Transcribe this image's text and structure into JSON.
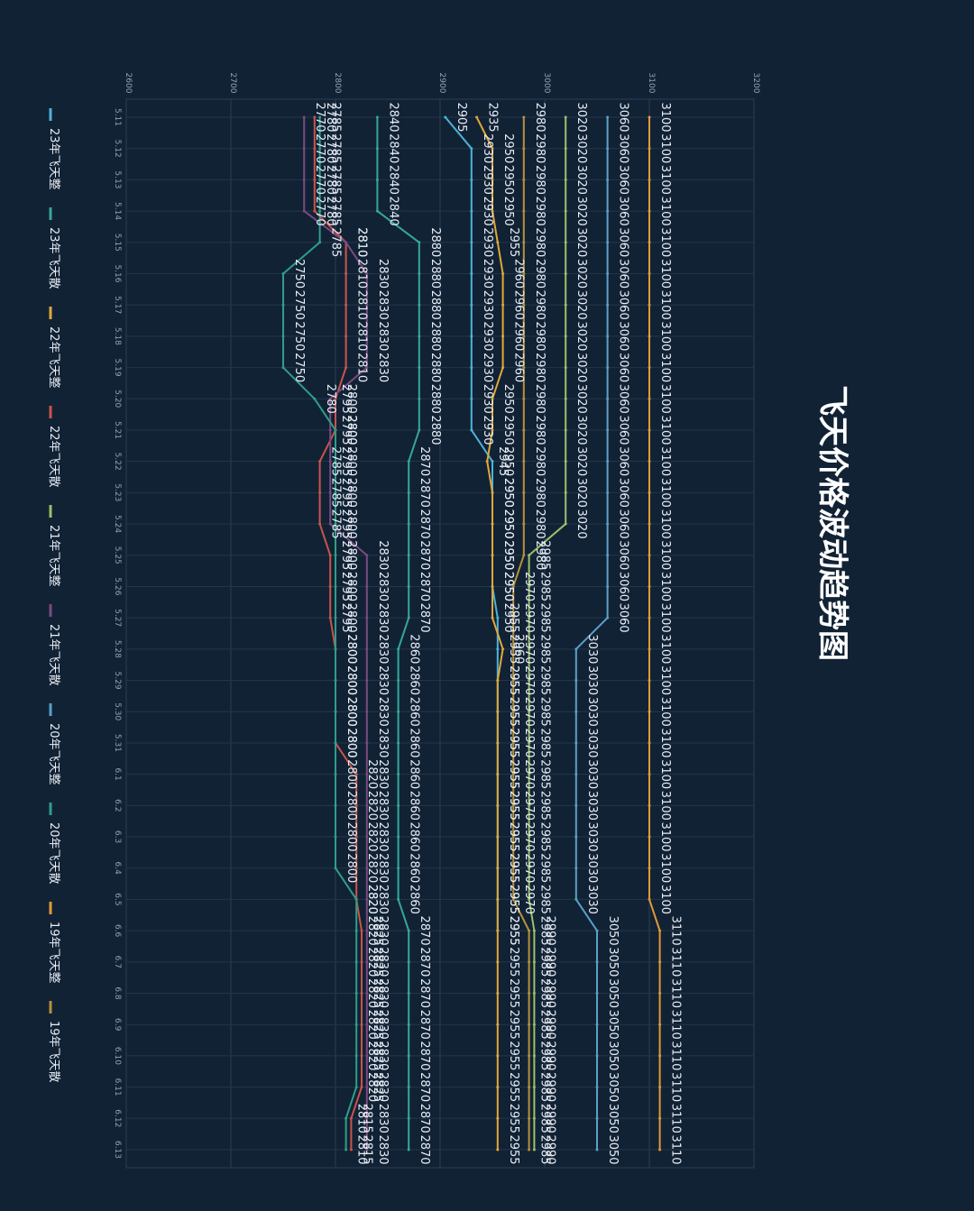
{
  "chart_data": {
    "type": "line",
    "title": "飞天价格波动趋势图",
    "xlabel": "",
    "ylabel": "",
    "ylim": [
      2600,
      3200
    ],
    "y_ticks": [
      "2600",
      "2700",
      "2800",
      "2900",
      "3000",
      "3100",
      "3200"
    ],
    "x": [
      "5.11",
      "5.12",
      "5.13",
      "5.14",
      "5.15",
      "5.16",
      "5.17",
      "5.18",
      "5.19",
      "5.20",
      "5.21",
      "5.22",
      "5.23",
      "5.24",
      "5.25",
      "5.26",
      "5.27",
      "5.28",
      "5.29",
      "5.30",
      "5.31",
      "6.1",
      "6.2",
      "6.3",
      "6.4",
      "6.5",
      "6.6",
      "6.7",
      "6.8",
      "6.9",
      "6.10",
      "6.11",
      "6.12",
      "6.13"
    ],
    "grid": true,
    "legend_position": "bottom (rotated, left edge of screen)",
    "orientation": "rotated 90° clockwise",
    "series": [
      {
        "name": "23年飞天整",
        "color": "#4bb4d8",
        "values": [
          2905,
          2930,
          2930,
          2930,
          2930,
          2930,
          2930,
          2930,
          2930,
          2930,
          2930,
          2950,
          2950,
          2950,
          2950,
          2950,
          2955,
          2955,
          2955,
          2955,
          2955,
          2955,
          2955,
          2955,
          2955,
          2955,
          2955,
          null,
          null,
          null,
          null,
          null,
          null,
          null
        ]
      },
      {
        "name": "23年飞天散",
        "color": "#35a79b",
        "values": [
          2840,
          2840,
          2840,
          2840,
          2880,
          2880,
          2880,
          2880,
          2880,
          2880,
          2880,
          2870,
          2870,
          2870,
          2870,
          2870,
          2870,
          2860,
          2860,
          2860,
          2860,
          2860,
          2860,
          2860,
          2860,
          2860,
          2870,
          2870,
          2870,
          2870,
          2870,
          2870,
          2870,
          2870
        ]
      },
      {
        "name": "22年飞天整",
        "color": "#e0a83a",
        "values": [
          2935,
          2950,
          2950,
          2950,
          2955,
          2960,
          2960,
          2960,
          2960,
          2950,
          2950,
          2945,
          2950,
          2950,
          2950,
          2950,
          2950,
          2960,
          2955,
          2955,
          2955,
          2955,
          2955,
          2955,
          2955,
          2955,
          2955,
          2955,
          2955,
          2955,
          2955,
          2955,
          2955,
          2955
        ]
      },
      {
        "name": "22年飞天散",
        "color": "#c9544c",
        "values": [
          2780,
          2780,
          2780,
          2780,
          2810,
          2810,
          2810,
          2810,
          2810,
          2800,
          2800,
          2785,
          2785,
          2785,
          2795,
          2795,
          2795,
          2800,
          2800,
          2800,
          2800,
          2820,
          2820,
          2820,
          2820,
          2820,
          2825,
          2825,
          2825,
          2825,
          2825,
          2825,
          2815,
          2815
        ]
      },
      {
        "name": "21年飞天整",
        "color": "#9bc06a",
        "values": [
          3020,
          3020,
          3020,
          3020,
          3020,
          3020,
          3020,
          3020,
          3020,
          3020,
          3020,
          3020,
          3020,
          3020,
          2985,
          2985,
          2985,
          2985,
          2985,
          2985,
          2985,
          2985,
          2985,
          2985,
          2985,
          2985,
          2990,
          2990,
          2990,
          2990,
          2990,
          2990,
          2990,
          2990
        ]
      },
      {
        "name": "21年飞天散",
        "color": "#7a4a80",
        "values": [
          2770,
          2770,
          2770,
          2770,
          2810,
          2830,
          2830,
          2830,
          2830,
          2795,
          2795,
          2795,
          2795,
          2795,
          2830,
          2830,
          2830,
          2830,
          2830,
          2830,
          2830,
          2830,
          2830,
          2830,
          2830,
          2830,
          2830,
          2830,
          2830,
          2830,
          2830,
          2830,
          2830,
          2830
        ]
      },
      {
        "name": "20年飞天整",
        "color": "#5aa0c8",
        "values": [
          3060,
          3060,
          3060,
          3060,
          3060,
          3060,
          3060,
          3060,
          3060,
          3060,
          3060,
          3060,
          3060,
          3060,
          3060,
          3060,
          3060,
          3030,
          3030,
          3030,
          3030,
          3030,
          3030,
          3030,
          3030,
          3030,
          3050,
          3050,
          3050,
          3050,
          3050,
          3050,
          3050,
          3050
        ]
      },
      {
        "name": "20年飞天散",
        "color": "#2f9e8a",
        "values": [
          2785,
          2785,
          2785,
          2785,
          2785,
          2750,
          2750,
          2750,
          2750,
          2780,
          2800,
          2800,
          2800,
          2800,
          2800,
          2800,
          2800,
          2800,
          2800,
          2800,
          2800,
          2800,
          2800,
          2800,
          2800,
          2820,
          2820,
          2820,
          2820,
          2820,
          2820,
          2820,
          2810,
          2810
        ]
      },
      {
        "name": "19年飞天整",
        "color": "#e09a36",
        "values": [
          3100,
          3100,
          3100,
          3100,
          3100,
          3100,
          3100,
          3100,
          3100,
          3100,
          3100,
          3100,
          3100,
          3100,
          3100,
          3100,
          3100,
          3100,
          3100,
          3100,
          3100,
          3100,
          3100,
          3100,
          3100,
          3100,
          3110,
          3110,
          3110,
          3110,
          3110,
          3110,
          3110,
          3110
        ]
      },
      {
        "name": "19年飞天散",
        "color": "#b8903a",
        "values": [
          2980,
          2980,
          2980,
          2980,
          2980,
          2980,
          2980,
          2980,
          2980,
          2980,
          2980,
          2980,
          2980,
          2980,
          2980,
          2970,
          2970,
          2970,
          2970,
          2970,
          2970,
          2970,
          2970,
          2970,
          2970,
          2970,
          2985,
          2985,
          2985,
          2985,
          2985,
          2985,
          2985,
          2985
        ]
      }
    ]
  }
}
